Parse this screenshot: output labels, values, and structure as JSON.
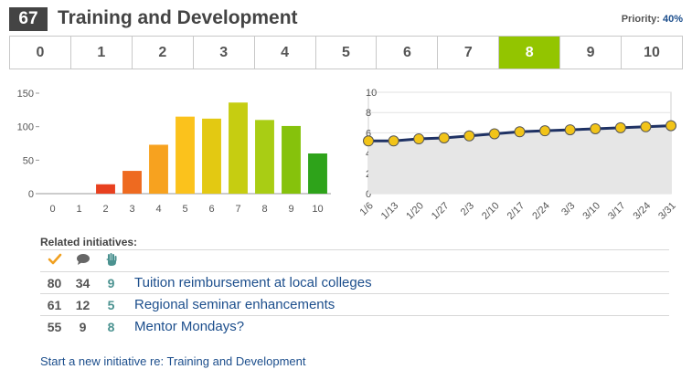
{
  "header": {
    "number": "67",
    "title": "Training and Development",
    "priority_label": "Priority:",
    "priority_value": "40%"
  },
  "scale": {
    "options": [
      "0",
      "1",
      "2",
      "3",
      "4",
      "5",
      "6",
      "7",
      "8",
      "9",
      "10"
    ],
    "selected": "8",
    "selected_color": "#93c500"
  },
  "bar_chart": {
    "chart_data": {
      "type": "bar",
      "categories": [
        "0",
        "1",
        "2",
        "3",
        "4",
        "5",
        "6",
        "7",
        "8",
        "9",
        "10"
      ],
      "values": [
        0,
        0,
        14,
        34,
        73,
        115,
        112,
        136,
        110,
        101,
        60
      ],
      "colors": [
        "#d11f1f",
        "#dc2f1f",
        "#e8401f",
        "#ee6a20",
        "#f7a21f",
        "#fbc21c",
        "#e3c912",
        "#c6cd11",
        "#a9cd14",
        "#86c20c",
        "#2ea31a"
      ],
      "yticks": [
        "0",
        "50",
        "100",
        "150"
      ],
      "ylim": [
        0,
        150
      ],
      "title": "",
      "xlabel": "",
      "ylabel": ""
    }
  },
  "line_chart": {
    "chart_data": {
      "type": "area",
      "categories": [
        "1/6",
        "1/13",
        "1/20",
        "1/27",
        "2/3",
        "2/10",
        "2/17",
        "2/24",
        "3/3",
        "3/10",
        "3/17",
        "3/24",
        "3/31"
      ],
      "values": [
        5.2,
        5.2,
        5.4,
        5.5,
        5.7,
        5.9,
        6.1,
        6.2,
        6.3,
        6.4,
        6.5,
        6.6,
        6.7
      ],
      "yticks": [
        "0",
        "2",
        "4",
        "6",
        "8",
        "10"
      ],
      "ylim": [
        0,
        10
      ],
      "line_color": "#1f3264",
      "point_color": "#f2c418",
      "fill_color": "#e6e6e6",
      "title": "",
      "xlabel": "",
      "ylabel": ""
    }
  },
  "related": {
    "label": "Related initiatives:",
    "columns": [
      {
        "icon": "checkmark-icon"
      },
      {
        "icon": "comment-icon"
      },
      {
        "icon": "hand-icon"
      }
    ],
    "rows": [
      {
        "approvals": "80",
        "comments": "34",
        "hands": "9",
        "title": "Tuition reimbursement at local colleges"
      },
      {
        "approvals": "61",
        "comments": "12",
        "hands": "5",
        "title": "Regional seminar enhancements"
      },
      {
        "approvals": "55",
        "comments": "9",
        "hands": "8",
        "title": "Mentor Mondays?"
      }
    ]
  },
  "footer": {
    "new_initiative_link": "Start a new initiative re: Training and Development"
  }
}
